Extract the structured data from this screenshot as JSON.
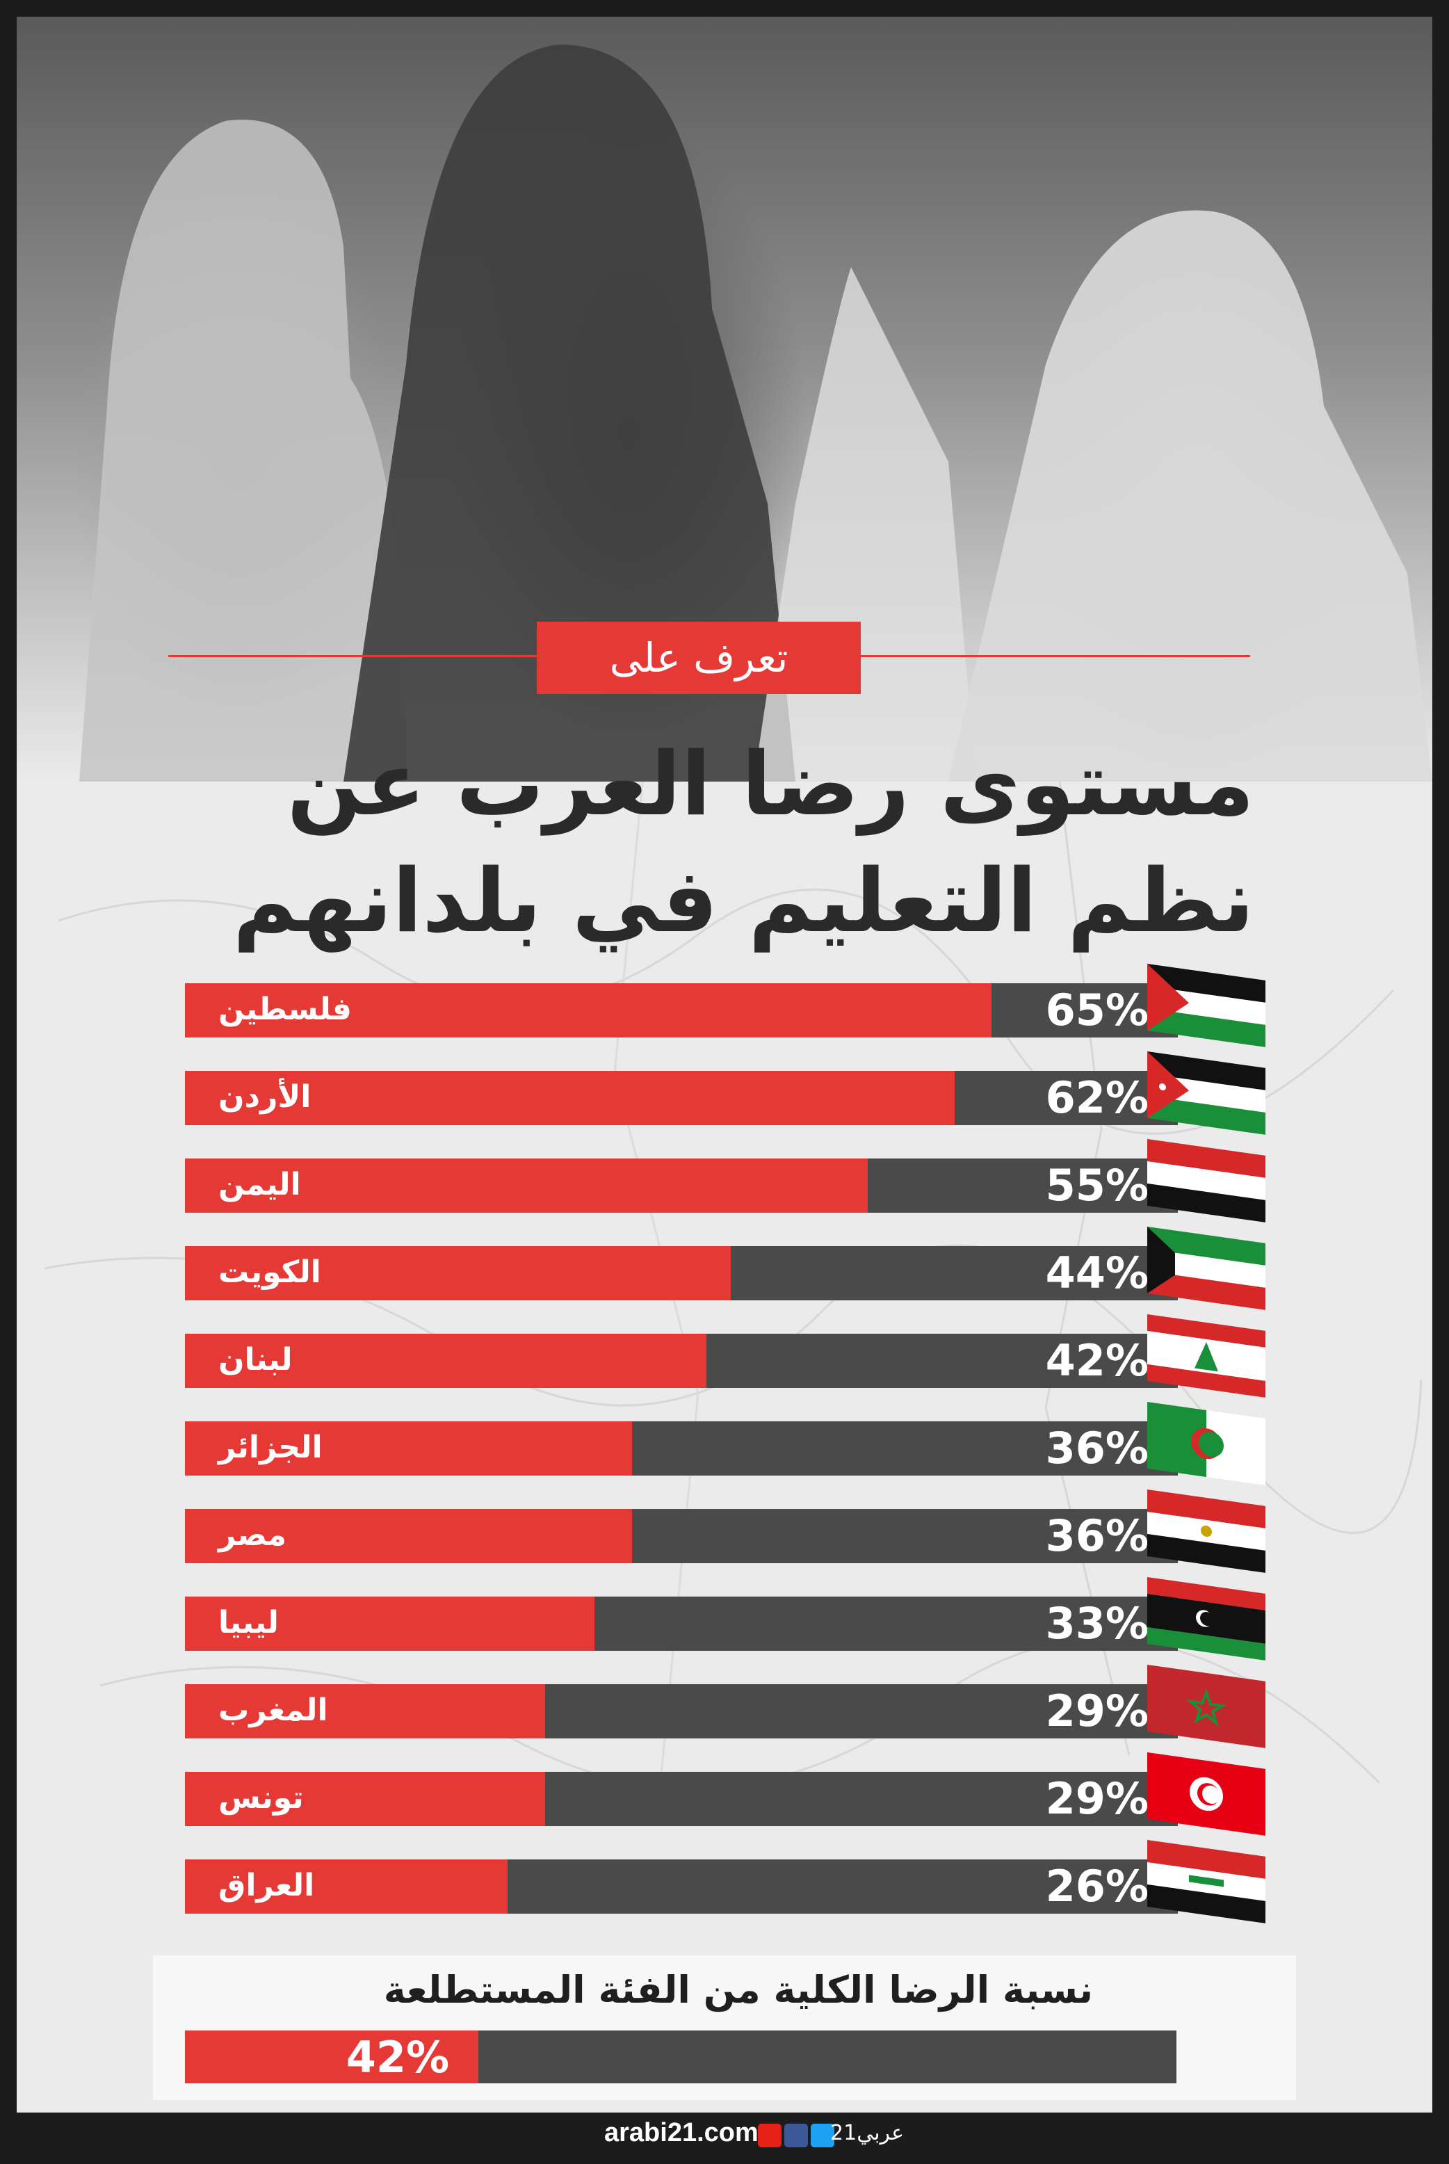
{
  "header": {
    "tag": "تعرف على",
    "title_line1": "مستوى رضا العرب عن",
    "title_line2": "نظم التعليم في بلدانهم"
  },
  "chart_data": {
    "type": "bar",
    "orientation": "horizontal",
    "categories": [
      "فلسطين",
      "الأردن",
      "اليمن",
      "الكويت",
      "لبنان",
      "الجزائر",
      "مصر",
      "ليبيا",
      "المغرب",
      "تونس",
      "العراق"
    ],
    "values": [
      65,
      62,
      55,
      44,
      42,
      36,
      36,
      33,
      29,
      29,
      26
    ],
    "value_labels": [
      "65%",
      "62%",
      "55%",
      "44%",
      "42%",
      "36%",
      "36%",
      "33%",
      "29%",
      "29%",
      "26%"
    ],
    "flags": [
      "flag-palestine-icon",
      "flag-jordan-icon",
      "flag-yemen-icon",
      "flag-kuwait-icon",
      "flag-lebanon-icon",
      "flag-algeria-icon",
      "flag-egypt-icon",
      "flag-libya-icon",
      "flag-morocco-icon",
      "flag-tunisia-icon",
      "flag-iraq-icon"
    ],
    "xlim": [
      0,
      80
    ],
    "colors": {
      "fill": "#e53935",
      "track": "#4a4a4a"
    }
  },
  "summary": {
    "label": "نسبة الرضا الكلية من الفئة المستطلعة",
    "value": 42,
    "value_label": "42%"
  },
  "footer": {
    "site": "arabi21.com",
    "logo": "عربي21",
    "social_icons": [
      "youtube-icon",
      "facebook-icon",
      "twitter-icon"
    ]
  }
}
